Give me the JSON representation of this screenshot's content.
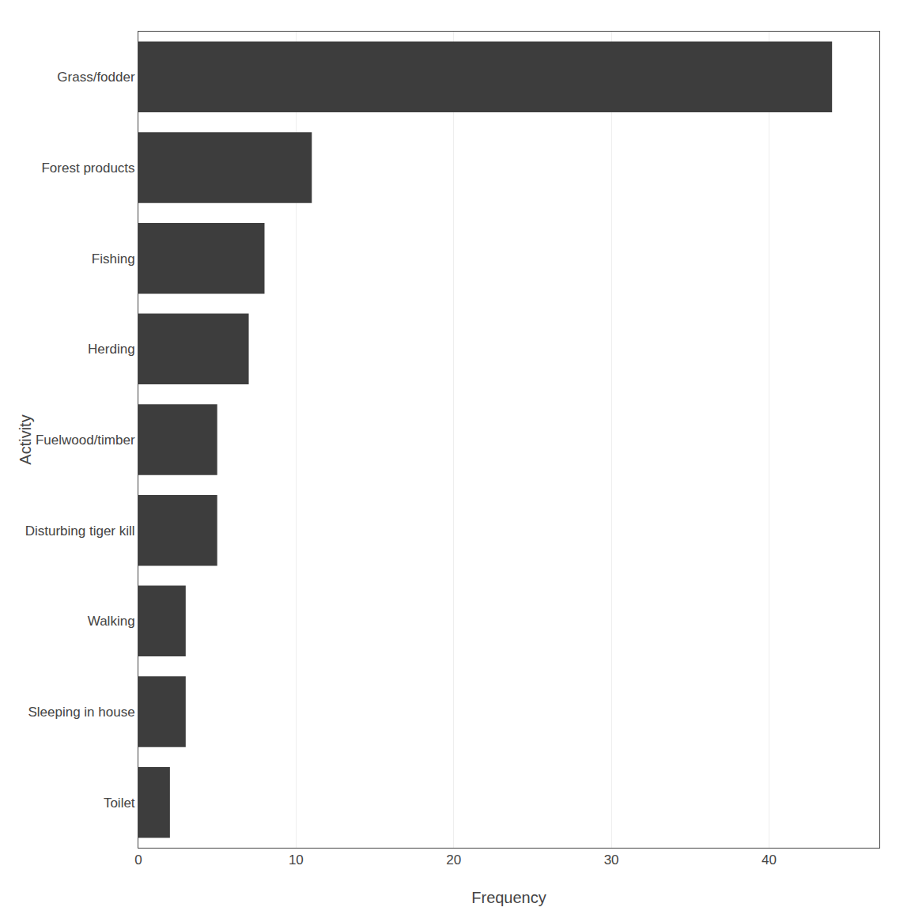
{
  "chart_data": {
    "type": "bar",
    "orientation": "horizontal",
    "categories": [
      "Toilet",
      "Sleeping in house",
      "Walking",
      "Disturbing tiger kill",
      "Fuelwood/timber",
      "Herding",
      "Fishing",
      "Forest products",
      "Grass/fodder"
    ],
    "values": [
      2,
      3,
      3,
      5,
      5,
      7,
      8,
      11,
      44
    ],
    "color": "#3d3d3d",
    "xlabel": "Frequency",
    "ylabel": "Activity",
    "xlim": [
      0,
      47
    ],
    "xticks": [
      0,
      10,
      20,
      30,
      40
    ],
    "grid": true
  }
}
